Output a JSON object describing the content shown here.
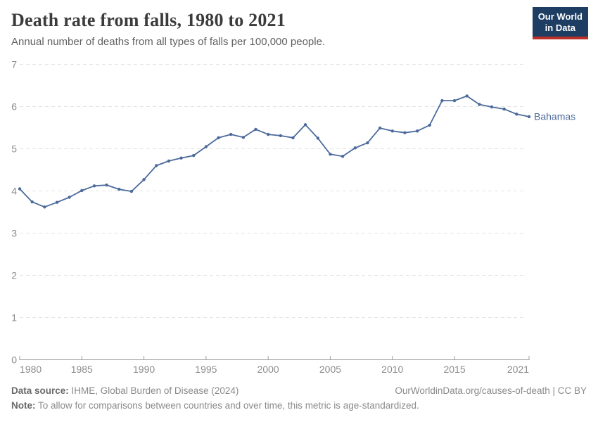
{
  "header": {
    "title": "Death rate from falls, 1980 to 2021",
    "subtitle": "Annual number of deaths from all types of falls per 100,000 people.",
    "logo": {
      "line1": "Our World",
      "line2": "in Data"
    }
  },
  "chart_data": {
    "type": "line",
    "title": "Death rate from falls, 1980 to 2021",
    "xlabel": "",
    "ylabel": "",
    "xlim": [
      1980,
      2021
    ],
    "ylim": [
      0,
      7
    ],
    "x_ticks": [
      1980,
      1985,
      1990,
      1995,
      2000,
      2005,
      2010,
      2015,
      2021
    ],
    "y_ticks": [
      0,
      1,
      2,
      3,
      4,
      5,
      6,
      7
    ],
    "grid": "horizontal-dashed",
    "legend_position": "end-of-line-label",
    "line_color": "#4c6a9c",
    "series": [
      {
        "name": "Bahamas",
        "x": [
          1980,
          1981,
          1982,
          1983,
          1984,
          1985,
          1986,
          1987,
          1988,
          1989,
          1990,
          1991,
          1992,
          1993,
          1994,
          1995,
          1996,
          1997,
          1998,
          1999,
          2000,
          2001,
          2002,
          2003,
          2004,
          2005,
          2006,
          2007,
          2008,
          2009,
          2010,
          2011,
          2012,
          2013,
          2014,
          2015,
          2016,
          2017,
          2018,
          2019,
          2020,
          2021
        ],
        "values": [
          4.05,
          3.74,
          3.62,
          3.73,
          3.85,
          4.01,
          4.12,
          4.14,
          4.04,
          3.99,
          4.27,
          4.6,
          4.71,
          4.78,
          4.84,
          5.05,
          5.26,
          5.34,
          5.27,
          5.46,
          5.34,
          5.31,
          5.26,
          5.57,
          5.25,
          4.87,
          4.82,
          5.02,
          5.14,
          5.49,
          5.42,
          5.38,
          5.42,
          5.56,
          6.14,
          6.14,
          6.25,
          6.05,
          5.99,
          5.94,
          5.82,
          5.76
        ]
      }
    ]
  },
  "footer": {
    "datasource_label": "Data source:",
    "datasource_text": " IHME, Global Burden of Disease (2024)",
    "link": "OurWorldinData.org/causes-of-death | CC BY",
    "note_label": "Note:",
    "note_text": " To allow for comparisons between countries and over time, this metric is age-standardized."
  }
}
